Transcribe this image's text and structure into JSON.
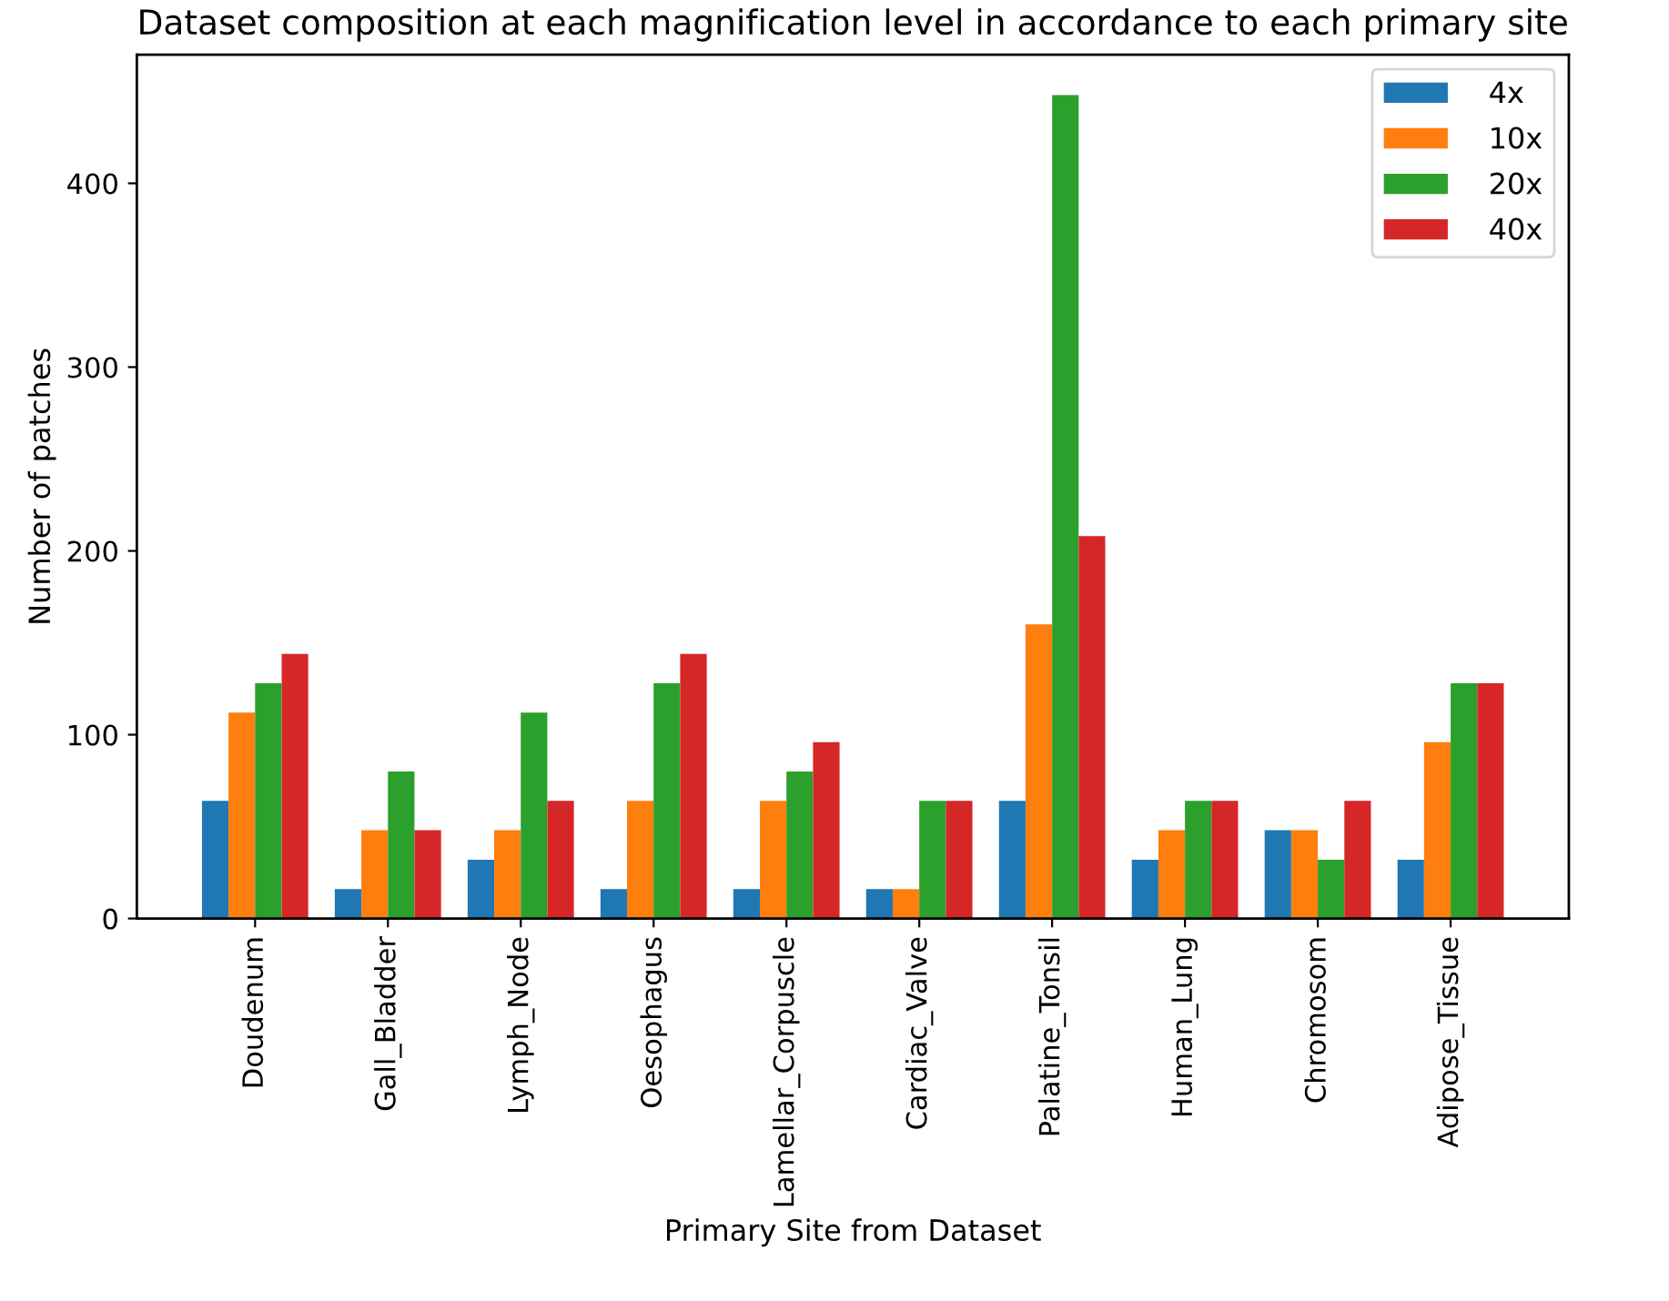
{
  "chart_data": {
    "type": "bar",
    "title": "Dataset composition at each magnification level in accordance to each primary site",
    "xlabel": "Primary Site from Dataset",
    "ylabel": "Number of patches",
    "categories": [
      "Doudenum",
      "Gall_Bladder",
      "Lymph_Node",
      "Oesophagus",
      "Lamellar_Corpuscle",
      "Cardiac_Valve",
      "Palatine_Tonsil",
      "Human_Lung",
      "Chromosom",
      "Adipose_Tissue"
    ],
    "series": [
      {
        "name": "4x",
        "color": "#1f77b4",
        "values": [
          64,
          16,
          32,
          16,
          16,
          16,
          64,
          32,
          48,
          32
        ]
      },
      {
        "name": "10x",
        "color": "#ff7f0e",
        "values": [
          112,
          48,
          48,
          64,
          64,
          16,
          160,
          48,
          48,
          96
        ]
      },
      {
        "name": "20x",
        "color": "#2ca02c",
        "values": [
          128,
          80,
          112,
          128,
          80,
          64,
          448,
          64,
          32,
          128
        ]
      },
      {
        "name": "40x",
        "color": "#d62728",
        "values": [
          144,
          48,
          64,
          144,
          96,
          64,
          208,
          64,
          64,
          128
        ]
      }
    ],
    "ylim": [
      0,
      470
    ],
    "yticks": [
      0,
      100,
      200,
      300,
      400
    ],
    "grid": false,
    "legend": "top right"
  }
}
